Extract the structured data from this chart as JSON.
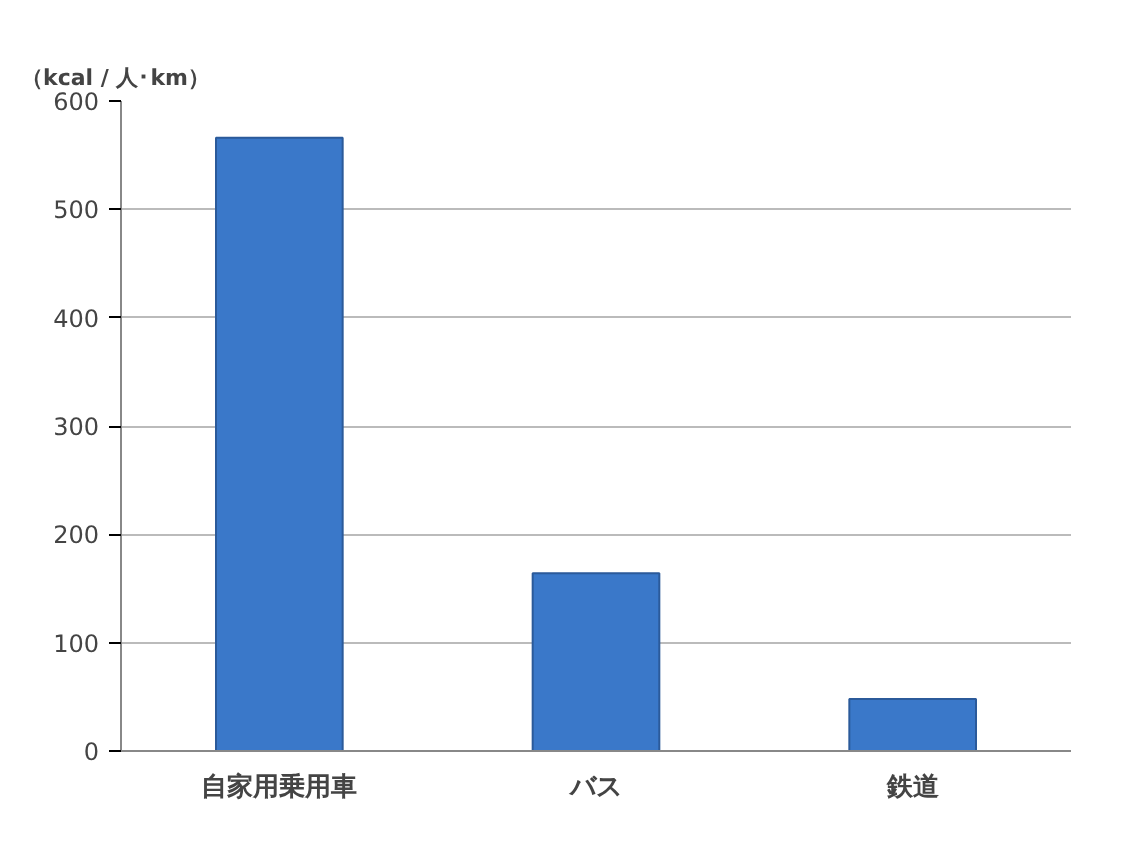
{
  "chart_data": {
    "type": "bar",
    "ylabel": "（kcal / 人･km）",
    "categories": [
      "自家用乗用車",
      "バス",
      "鉄道"
    ],
    "values": [
      566,
      164,
      48
    ],
    "color": "#3a78c9",
    "ylim": [
      0,
      600
    ],
    "yticks": [
      0,
      100,
      200,
      300,
      400,
      500,
      600
    ],
    "grid": "y"
  }
}
